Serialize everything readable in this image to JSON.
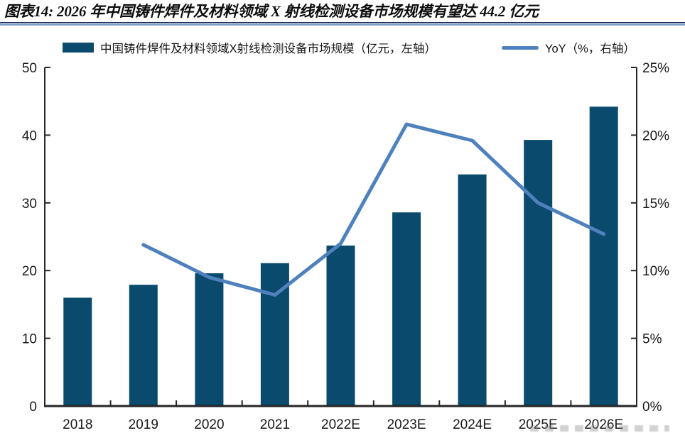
{
  "header": {
    "title": "图表14: 2026 年中国铸件焊件及材料领域 X 射线检测设备市场规模有望达 44.2 亿元"
  },
  "legend": {
    "bar_label": "中国铸件焊件及材料领域X射线检测设备市场规模（亿元，左轴）",
    "line_label": "YoY（%，右轴）"
  },
  "colors": {
    "bar": "#0A4A6C",
    "line": "#4E81BD",
    "rule_dark": "#1F3864",
    "rule_light": "#7E9DC8",
    "axis": "#262626",
    "tick_text": "#1a1a1a"
  },
  "chart_data": {
    "type": "bar",
    "subtype": "bar+line combo, dual axis",
    "title": "图表14: 2026 年中国铸件焊件及材料领域 X 射线检测设备市场规模有望达 44.2 亿元",
    "categories": [
      "2018",
      "2019",
      "2020",
      "2021",
      "2022E",
      "2023E",
      "2024E",
      "2025E",
      "2026E"
    ],
    "series": [
      {
        "name": "中国铸件焊件及材料领域X射线检测设备市场规模（亿元，左轴）",
        "type": "bar",
        "axis": "left",
        "values": [
          16.0,
          17.9,
          19.6,
          21.1,
          23.7,
          28.6,
          34.2,
          39.3,
          44.2
        ]
      },
      {
        "name": "YoY（%，右轴）",
        "type": "line",
        "axis": "right",
        "values": [
          null,
          11.9,
          9.5,
          8.2,
          12.0,
          20.8,
          19.6,
          15.0,
          12.7
        ]
      }
    ],
    "left_axis": {
      "min": 0,
      "max": 50,
      "tick_values": [
        0,
        10,
        20,
        30,
        40,
        50
      ],
      "tick_labels": [
        "0",
        "10",
        "20",
        "30",
        "40",
        "50"
      ]
    },
    "right_axis": {
      "min": 0,
      "max": 25,
      "tick_values": [
        0,
        5,
        10,
        15,
        20,
        25
      ],
      "tick_labels": [
        "0%",
        "5%",
        "10%",
        "15%",
        "20%",
        "25%"
      ]
    },
    "grid": false,
    "legend_position": "top",
    "xlabel": "",
    "ylabel_left": "亿元",
    "ylabel_right": "%"
  }
}
